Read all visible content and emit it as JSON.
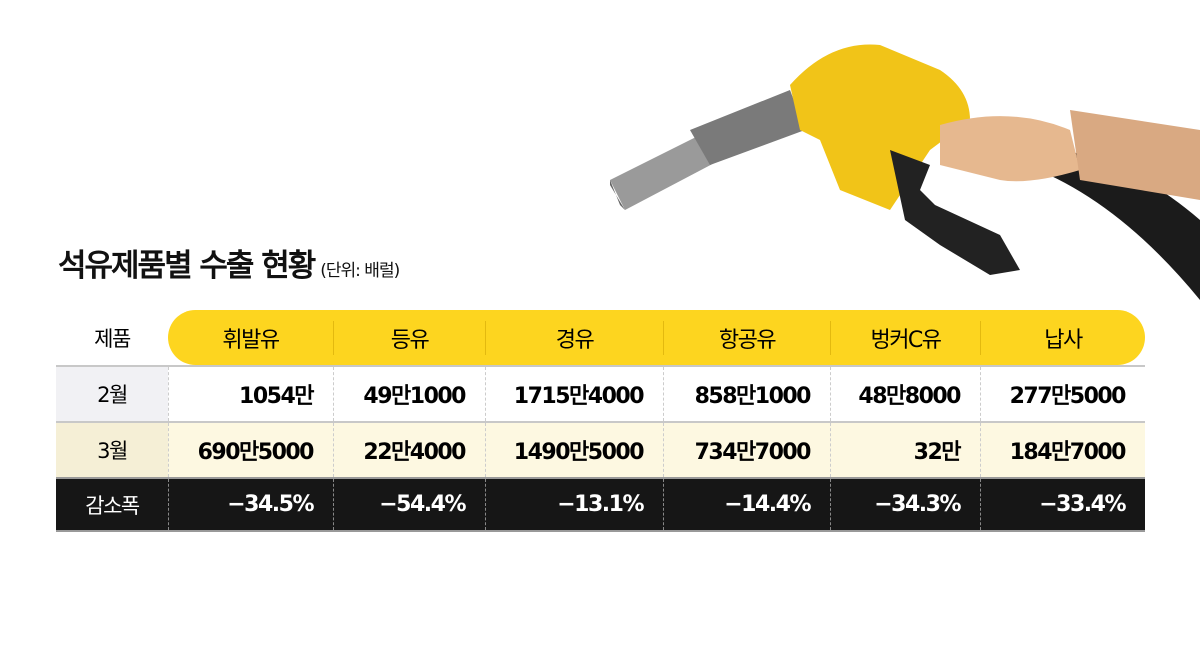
{
  "title": "석유제품별 수출 현황",
  "unit": "(단위: 배럴)",
  "colors": {
    "header_yellow": "#fdd51f",
    "row_march": "#fdf8e1",
    "decrease_row": "#161616"
  },
  "chart_data": {
    "type": "table",
    "title": "석유제품별 수출 현황",
    "unit": "(단위: 배럴)",
    "corner_label": "제품",
    "columns": [
      "휘발유",
      "등유",
      "경유",
      "항공유",
      "벙커C유",
      "납사"
    ],
    "rows": [
      {
        "label": "2월",
        "values": [
          "1054만",
          "49만1000",
          "1715만4000",
          "858만1000",
          "48만8000",
          "277만5000"
        ]
      },
      {
        "label": "3월",
        "values": [
          "690만5000",
          "22만4000",
          "1490만5000",
          "734만7000",
          "32만",
          "184만7000"
        ]
      },
      {
        "label": "감소폭",
        "values": [
          "−34.5%",
          "−54.4%",
          "−13.1%",
          "−14.4%",
          "−34.3%",
          "−33.4%"
        ]
      }
    ]
  }
}
